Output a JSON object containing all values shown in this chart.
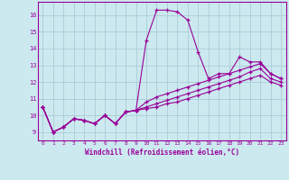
{
  "xlabel": "Windchill (Refroidissement éolien,°C)",
  "background_color": "#cce9ef",
  "grid_color": "#aaccd8",
  "line_color": "#990099",
  "xlim": [
    -0.5,
    23.5
  ],
  "ylim": [
    8.5,
    16.8
  ],
  "yticks": [
    9,
    10,
    11,
    12,
    13,
    14,
    15,
    16
  ],
  "xticks": [
    0,
    1,
    2,
    3,
    4,
    5,
    6,
    7,
    8,
    9,
    10,
    11,
    12,
    13,
    14,
    15,
    16,
    17,
    18,
    19,
    20,
    21,
    22,
    23
  ],
  "series": [
    [
      10.5,
      9.0,
      9.3,
      9.8,
      9.7,
      9.5,
      10.0,
      9.5,
      10.2,
      10.3,
      14.5,
      16.3,
      16.3,
      16.2,
      15.7,
      13.8,
      12.2,
      12.5,
      12.5,
      13.5,
      13.2,
      13.2,
      12.5,
      12.2
    ],
    [
      10.5,
      9.0,
      9.3,
      9.8,
      9.7,
      9.5,
      10.0,
      9.5,
      10.2,
      10.3,
      10.8,
      11.1,
      11.3,
      11.5,
      11.7,
      11.9,
      12.1,
      12.3,
      12.5,
      12.7,
      12.9,
      13.1,
      12.5,
      12.2
    ],
    [
      10.5,
      9.0,
      9.3,
      9.8,
      9.7,
      9.5,
      10.0,
      9.5,
      10.2,
      10.3,
      10.5,
      10.7,
      10.9,
      11.1,
      11.3,
      11.5,
      11.7,
      11.9,
      12.1,
      12.3,
      12.6,
      12.8,
      12.2,
      12.0
    ],
    [
      10.5,
      9.0,
      9.3,
      9.8,
      9.7,
      9.5,
      10.0,
      9.5,
      10.2,
      10.3,
      10.4,
      10.5,
      10.7,
      10.8,
      11.0,
      11.2,
      11.4,
      11.6,
      11.8,
      12.0,
      12.2,
      12.4,
      12.0,
      11.8
    ]
  ]
}
